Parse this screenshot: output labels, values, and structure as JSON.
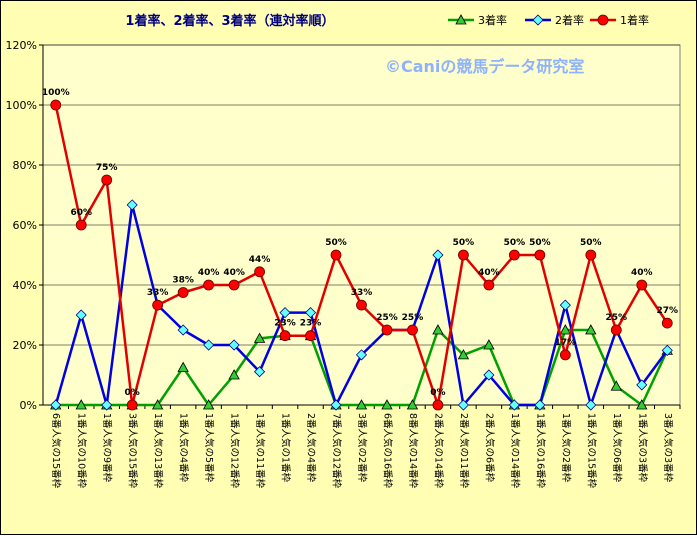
{
  "chart_data": {
    "type": "line",
    "title": "1着率、2着率、3着率（連対率順）",
    "watermark": "©Caniの競馬データ研究室",
    "ylim": [
      0,
      120
    ],
    "y_ticks": [
      "0%",
      "20%",
      "40%",
      "60%",
      "80%",
      "100%",
      "120%"
    ],
    "grid": true,
    "legend_position": "top-right",
    "categories": [
      "6番人気の15番枠",
      "1番人気の10番枠",
      "1番人気の9番枠",
      "3番人気の15番枠",
      "1番人気の13番枠",
      "1番人気の4番枠",
      "1番人気の5番枠",
      "1番人気の12番枠",
      "1番人気の11番枠",
      "1番人気の1番枠",
      "2番人気の4番枠",
      "7番人気の12番枠",
      "3番人気の2番枠",
      "6番人気の16番枠",
      "8番人気の14番枠",
      "2番人気の14番枠",
      "2番人気の11番枠",
      "2番人気の6番枠",
      "1番人気の14番枠",
      "1番人気の16番枠",
      "1番人気の2番枠",
      "1番人気の15番枠",
      "1番人気の6番枠",
      "1番人気の3番枠",
      "3番人気の3番枠"
    ],
    "series": [
      {
        "name": "3着率",
        "color": "#00a000",
        "marker": "triangle",
        "values": [
          0,
          0,
          0,
          0,
          0,
          12.5,
          0,
          10,
          22.2,
          23.1,
          23.1,
          0,
          0,
          0,
          0,
          25,
          16.7,
          20,
          0,
          0,
          25,
          25,
          6.25,
          0,
          18.2
        ]
      },
      {
        "name": "2着率",
        "color": "#0000e0",
        "marker": "diamond",
        "values": [
          0,
          30,
          0,
          66.7,
          33.3,
          25,
          20,
          20,
          11.1,
          30.8,
          30.8,
          0,
          16.7,
          25,
          25,
          50,
          0,
          10,
          0,
          0,
          33.3,
          0,
          25,
          6.7,
          18.2
        ]
      },
      {
        "name": "1着率",
        "color": "#e00000",
        "marker": "circle",
        "values": [
          100,
          60,
          75,
          0,
          33.3,
          37.5,
          40,
          40,
          44.4,
          23.1,
          23.1,
          50,
          33.3,
          25,
          25,
          0,
          50,
          40,
          50,
          50,
          16.7,
          50,
          25,
          40,
          27.3
        ],
        "labels": [
          "100%",
          "60%",
          "75%",
          "0%",
          "33%",
          "38%",
          "40%",
          "40%",
          "44%",
          "23%",
          "23%",
          "50%",
          "33%",
          "25%",
          "25%",
          "0%",
          "50%",
          "40%",
          "50%",
          "50%",
          "17%",
          "50%",
          "25%",
          "40%",
          "27%"
        ]
      }
    ]
  }
}
